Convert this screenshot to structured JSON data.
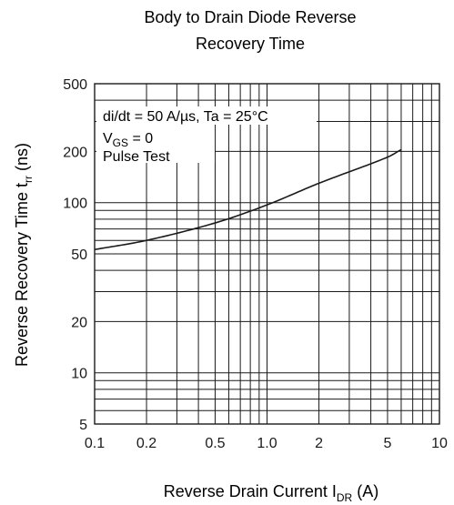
{
  "chart_data": {
    "type": "line",
    "title_lines": [
      "Body to Drain Diode Reverse",
      "Recovery Time"
    ],
    "xlabel": {
      "main": "Reverse Drain Current  I",
      "sub": "DR",
      "unit": "  (A)"
    },
    "ylabel": {
      "main": "Reverse Recovery Time  t",
      "sub": "rr",
      "unit": "  (ns)"
    },
    "x_scale": "log",
    "y_scale": "log",
    "xlim": [
      0.1,
      10
    ],
    "ylim": [
      5,
      500
    ],
    "x_ticks": [
      {
        "value": 0.1,
        "label": "0.1"
      },
      {
        "value": 0.2,
        "label": "0.2"
      },
      {
        "value": 0.5,
        "label": "0.5"
      },
      {
        "value": 1.0,
        "label": "1.0"
      },
      {
        "value": 2,
        "label": "2"
      },
      {
        "value": 5,
        "label": "5"
      },
      {
        "value": 10,
        "label": "10"
      }
    ],
    "y_ticks": [
      {
        "value": 5,
        "label": "5"
      },
      {
        "value": 10,
        "label": "10"
      },
      {
        "value": 20,
        "label": "20"
      },
      {
        "value": 50,
        "label": "50"
      },
      {
        "value": 100,
        "label": "100"
      },
      {
        "value": 200,
        "label": "200"
      },
      {
        "value": 500,
        "label": "500"
      }
    ],
    "x_gridlines": [
      0.1,
      0.2,
      0.3,
      0.4,
      0.5,
      0.6,
      0.7,
      0.8,
      0.9,
      1,
      2,
      3,
      4,
      5,
      6,
      7,
      8,
      9,
      10
    ],
    "y_gridlines": [
      5,
      6,
      7,
      8,
      9,
      10,
      20,
      30,
      40,
      50,
      60,
      70,
      80,
      90,
      100,
      200,
      300,
      400,
      500
    ],
    "grid": true,
    "annotations": {
      "line1": "di/dt = 50 A/µs, Ta = 25°C",
      "line2_main": "V",
      "line2_sub": "GS",
      "line2_rest": " = 0",
      "line3": "Pulse Test"
    },
    "series": [
      {
        "x": [
          0.1,
          0.2,
          0.5,
          1.0,
          2,
          5,
          6
        ],
        "y": [
          53,
          60,
          76,
          97,
          130,
          185,
          205
        ]
      }
    ],
    "colors": {
      "line": "#1a1a1a",
      "grid": "#1a1a1a",
      "background": "#ffffff"
    }
  }
}
